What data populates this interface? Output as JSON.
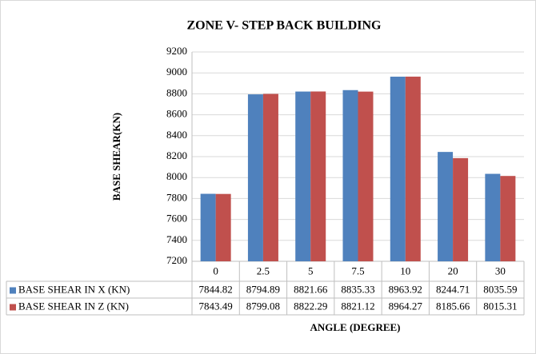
{
  "chart_data": {
    "type": "bar",
    "title": "ZONE V- STEP BACK BUILDING",
    "x_label": "ANGLE (DEGREE)",
    "y_label": "BASE SHEAR(KN)",
    "categories": [
      "0",
      "2.5",
      "5",
      "7.5",
      "10",
      "20",
      "30"
    ],
    "series": [
      {
        "name": "BASE SHEAR IN X (KN)",
        "color": "#4f81bd",
        "values": [
          7844.82,
          8794.89,
          8821.66,
          8835.33,
          8963.92,
          8244.71,
          8035.59
        ]
      },
      {
        "name": "BASE SHEAR IN Z (KN)",
        "color": "#c0504d",
        "values": [
          7843.49,
          8799.08,
          8822.29,
          8821.12,
          8964.27,
          8185.66,
          8015.31
        ]
      }
    ],
    "ylim": [
      7200,
      9200
    ],
    "yticks": [
      7200,
      7400,
      7600,
      7800,
      8000,
      8200,
      8400,
      8600,
      8800,
      9000,
      9200
    ],
    "grid": true,
    "legend": "table"
  }
}
